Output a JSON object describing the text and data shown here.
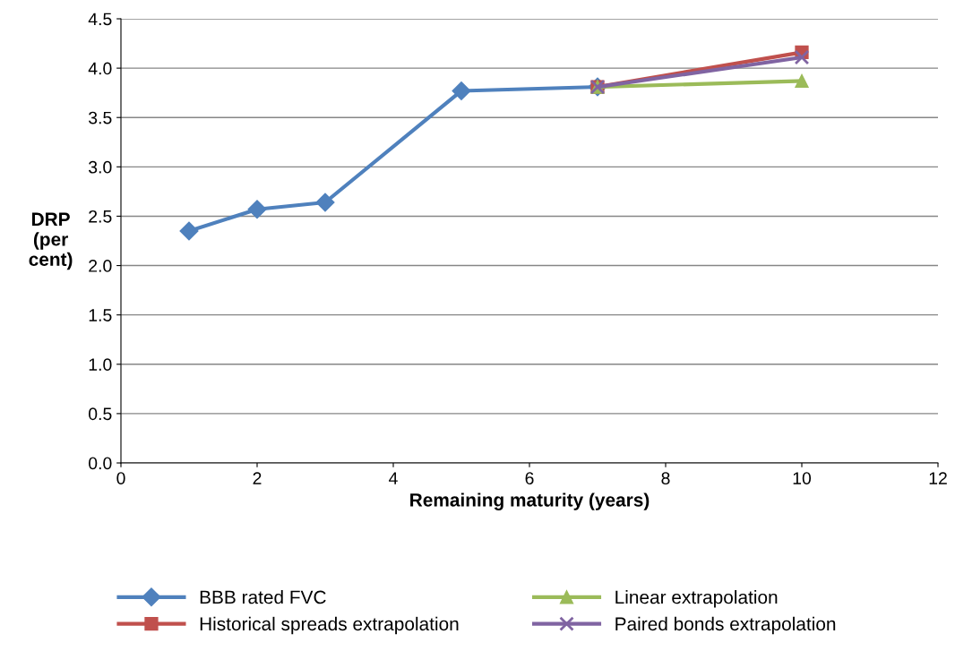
{
  "chart_data": {
    "type": "line",
    "xlabel": "Remaining maturity (years)",
    "ylabel": "DRP\n(per\ncent)",
    "xlim": [
      0,
      12
    ],
    "xticks": [
      0,
      2,
      4,
      6,
      8,
      10,
      12
    ],
    "ylim": [
      0,
      4.5
    ],
    "yticks": [
      {
        "value": 0,
        "label": "0.0"
      },
      {
        "value": 0.5,
        "label": "0.5"
      },
      {
        "value": 1,
        "label": "1.0"
      },
      {
        "value": 1.5,
        "label": "1.5"
      },
      {
        "value": 2,
        "label": "2.0"
      },
      {
        "value": 2.5,
        "label": "2.5"
      },
      {
        "value": 3,
        "label": "3.0"
      },
      {
        "value": 3.5,
        "label": "3.5"
      },
      {
        "value": 4,
        "label": "4.0"
      },
      {
        "value": 4.5,
        "label": "4.5"
      }
    ],
    "grid": "y",
    "legend": "bottom",
    "line_style": "solid",
    "series": [
      {
        "name": "BBB rated FVC",
        "color": "#4f81bd",
        "marker": "diamond",
        "x": [
          1,
          2,
          3,
          5,
          7
        ],
        "values": [
          2.35,
          2.57,
          2.64,
          3.77,
          3.81
        ]
      },
      {
        "name": "Historical spreads extrapolation",
        "color": "#c0504d",
        "marker": "square",
        "x": [
          7,
          10
        ],
        "values": [
          3.81,
          4.16
        ]
      },
      {
        "name": "Linear extrapolation",
        "color": "#9bbb59",
        "marker": "triangle",
        "x": [
          7,
          10
        ],
        "values": [
          3.81,
          3.87
        ]
      },
      {
        "name": "Paired bonds extrapolation",
        "color": "#8064a2",
        "marker": "cross",
        "x": [
          7,
          10
        ],
        "values": [
          3.81,
          4.11
        ]
      }
    ]
  }
}
